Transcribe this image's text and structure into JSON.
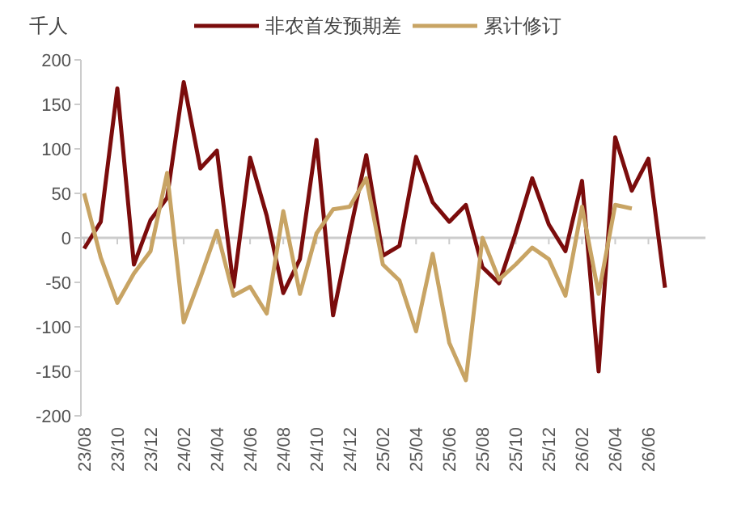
{
  "chart_data": {
    "type": "line",
    "ylabel": "千人",
    "categories": [
      "23/08",
      null,
      "23/10",
      null,
      "23/12",
      null,
      "24/02",
      null,
      "24/04",
      null,
      "24/06",
      null,
      "24/08",
      null,
      "24/10",
      null,
      "24/12",
      null,
      "25/02",
      null,
      "25/04",
      null,
      "25/06",
      null,
      "25/08",
      null,
      "25/10",
      null,
      "25/12",
      null,
      "26/02",
      null,
      "26/04",
      null,
      "26/06",
      null
    ],
    "series": [
      {
        "name": "非农首发预期差",
        "color": "#7b0c0c",
        "values": [
          -12,
          18,
          168,
          -30,
          20,
          45,
          175,
          78,
          98,
          -55,
          90,
          25,
          -62,
          -24,
          110,
          -87,
          5,
          93,
          -20,
          -9,
          91,
          40,
          18,
          37,
          -33,
          -51,
          5,
          67,
          15,
          -15,
          64,
          -150,
          113,
          53,
          89,
          -56
        ]
      },
      {
        "name": "累计修订",
        "color": "#c8a464",
        "values": [
          50,
          -22,
          -73,
          -40,
          -15,
          73,
          -95,
          -45,
          8,
          -65,
          -55,
          -85,
          30,
          -63,
          5,
          32,
          35,
          67,
          -30,
          -48,
          -105,
          -18,
          -118,
          -160,
          0,
          -47,
          -30,
          -11,
          -24,
          -65,
          35,
          -63,
          37,
          33,
          null,
          null
        ]
      }
    ],
    "ylim": [
      -200,
      200
    ],
    "yticks": [
      -200,
      -150,
      -100,
      -50,
      0,
      50,
      100,
      150,
      200
    ],
    "ref_lines": [
      {
        "axis": "y",
        "value": 0,
        "color": "#cccccc"
      }
    ],
    "legend": "top",
    "grid": false,
    "line_style": "solid",
    "marker": "none"
  }
}
